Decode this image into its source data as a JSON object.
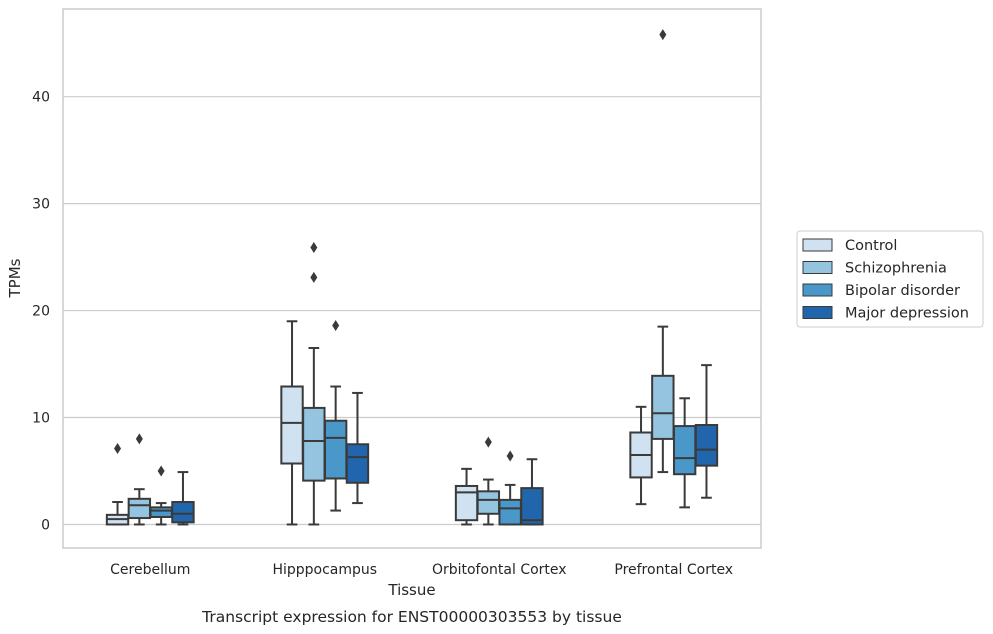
{
  "chart_data": {
    "type": "box",
    "title": "",
    "caption": "Transcript expression for ENST00000303553 by tissue",
    "xlabel": "Tissue",
    "ylabel": "TPMs",
    "ylim": [
      -2.2,
      48.2
    ],
    "yticks": [
      0,
      10,
      20,
      30,
      40
    ],
    "grid": "horizontal",
    "legend_placement": "right",
    "categories": [
      "Cerebellum",
      "Hipppocampus",
      "Orbitofontal Cortex",
      "Prefrontal Cortex"
    ],
    "series": [
      {
        "name": "Control",
        "color": "#d0e1f2",
        "boxes": [
          {
            "whislo": 0.0,
            "q1": 0.0,
            "med": 0.5,
            "q3": 0.9,
            "whishi": 2.1,
            "fliers": [
              7.1
            ]
          },
          {
            "whislo": 0.0,
            "q1": 5.7,
            "med": 9.5,
            "q3": 12.9,
            "whishi": 19.0,
            "fliers": []
          },
          {
            "whislo": 0.0,
            "q1": 0.4,
            "med": 3.0,
            "q3": 3.6,
            "whishi": 5.2,
            "fliers": []
          },
          {
            "whislo": 1.9,
            "q1": 4.4,
            "med": 6.5,
            "q3": 8.6,
            "whishi": 11.0,
            "fliers": []
          }
        ]
      },
      {
        "name": "Schizophrenia",
        "color": "#94c4df",
        "boxes": [
          {
            "whislo": 0.0,
            "q1": 0.6,
            "med": 1.8,
            "q3": 2.4,
            "whishi": 3.3,
            "fliers": [
              8.0
            ]
          },
          {
            "whislo": 0.0,
            "q1": 4.1,
            "med": 7.8,
            "q3": 10.9,
            "whishi": 16.5,
            "fliers": [
              23.1,
              25.9
            ]
          },
          {
            "whislo": 0.0,
            "q1": 1.0,
            "med": 2.3,
            "q3": 3.1,
            "whishi": 4.2,
            "fliers": [
              7.7
            ]
          },
          {
            "whislo": 4.9,
            "q1": 8.0,
            "med": 10.4,
            "q3": 13.9,
            "whishi": 18.5,
            "fliers": [
              45.8
            ]
          }
        ]
      },
      {
        "name": "Bipolar disorder",
        "color": "#4a98c9",
        "boxes": [
          {
            "whislo": 0.0,
            "q1": 0.7,
            "med": 1.3,
            "q3": 1.6,
            "whishi": 2.0,
            "fliers": [
              5.0
            ]
          },
          {
            "whislo": 1.3,
            "q1": 4.3,
            "med": 8.1,
            "q3": 9.7,
            "whishi": 12.9,
            "fliers": [
              18.6
            ]
          },
          {
            "whislo": 0.0,
            "q1": 0.0,
            "med": 1.5,
            "q3": 2.3,
            "whishi": 3.7,
            "fliers": [
              6.4
            ]
          },
          {
            "whislo": 1.6,
            "q1": 4.7,
            "med": 6.2,
            "q3": 9.2,
            "whishi": 11.8,
            "fliers": []
          }
        ]
      },
      {
        "name": "Major depression",
        "color": "#2166ac",
        "boxes": [
          {
            "whislo": 0.0,
            "q1": 0.2,
            "med": 1.0,
            "q3": 2.1,
            "whishi": 4.9,
            "fliers": []
          },
          {
            "whislo": 2.0,
            "q1": 3.9,
            "med": 6.3,
            "q3": 7.5,
            "whishi": 12.3,
            "fliers": []
          },
          {
            "whislo": 0.0,
            "q1": 0.0,
            "med": 0.4,
            "q3": 3.4,
            "whishi": 6.1,
            "fliers": []
          },
          {
            "whislo": 2.5,
            "q1": 5.5,
            "med": 7.0,
            "q3": 9.3,
            "whishi": 14.9,
            "fliers": []
          }
        ]
      }
    ]
  }
}
